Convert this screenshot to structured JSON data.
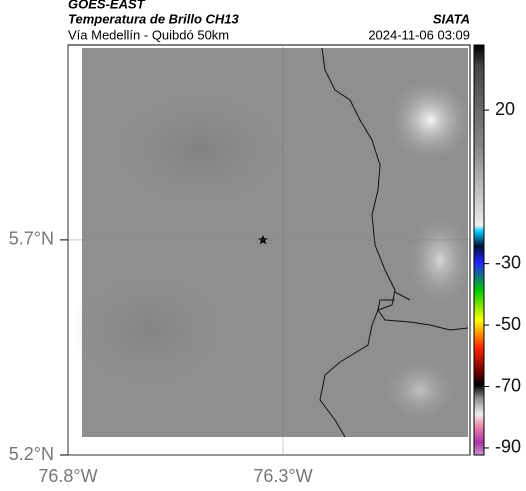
{
  "header": {
    "source": "GOES-EAST",
    "product": "Temperatura de Brillo CH13",
    "route": "Vía Medellín - Quibdó 50km",
    "agency": "SIATA",
    "datetime": "2024-11-06 03:09"
  },
  "map": {
    "xlim": [
      -76.8,
      -75.865
    ],
    "ylim": [
      5.2,
      6.153
    ],
    "xticks": [
      {
        "value": -76.8,
        "label": "76.8°W"
      },
      {
        "value": -76.3,
        "label": "76.3°W"
      }
    ],
    "yticks": [
      {
        "value": 5.2,
        "label": "5.2°N"
      },
      {
        "value": 5.7,
        "label": "5.7°N"
      }
    ]
  },
  "colorbar": {
    "lim": [
      -92.3,
      41.2
    ],
    "ticks": [
      20,
      -30,
      -50,
      -70,
      -90
    ]
  }
}
